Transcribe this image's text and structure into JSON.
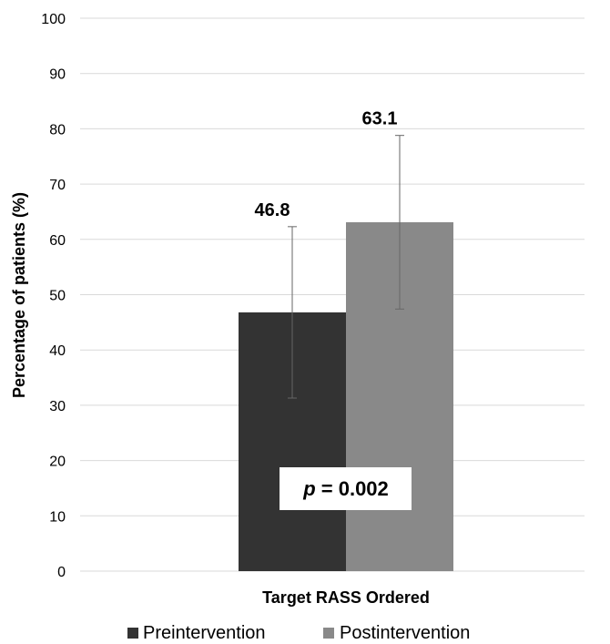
{
  "chart_data": {
    "type": "bar",
    "title": "",
    "xlabel": "",
    "ylabel": "Percentage of patients (%)",
    "ylim": [
      0,
      100
    ],
    "yticks": [
      0,
      10,
      20,
      30,
      40,
      50,
      60,
      70,
      80,
      90,
      100
    ],
    "grid": true,
    "legend_position": "bottom",
    "categories": [
      "Target RASS Ordered"
    ],
    "series": [
      {
        "name": "Preintervention",
        "color": "#333333",
        "values": [
          46.8
        ],
        "value_labels": [
          "46.8"
        ],
        "error_low": [
          31.3
        ],
        "error_high": [
          62.3
        ]
      },
      {
        "name": "Postintervention",
        "color": "#898989",
        "values": [
          63.1
        ],
        "value_labels": [
          "63.1"
        ],
        "error_low": [
          47.4
        ],
        "error_high": [
          78.8
        ]
      }
    ],
    "annotation": {
      "p_symbol": "p",
      "p_value": " = 0.002"
    }
  }
}
